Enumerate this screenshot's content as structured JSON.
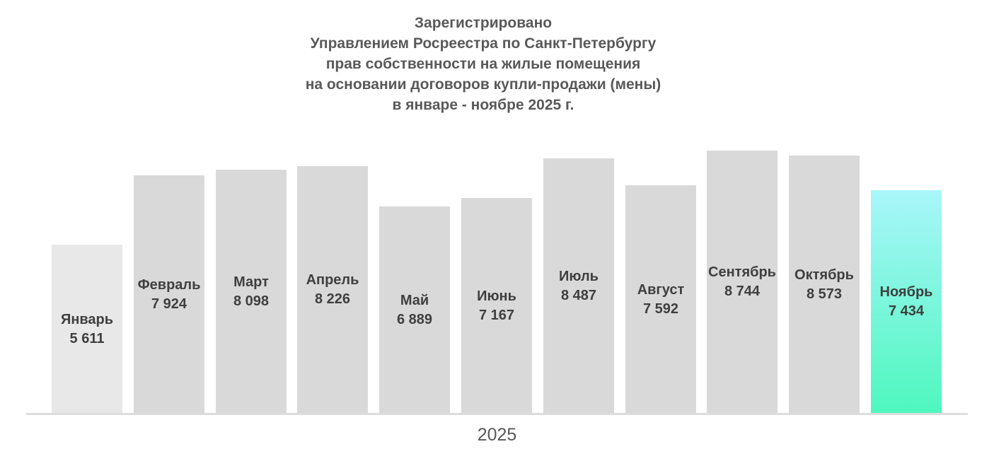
{
  "title": {
    "lines": [
      "Зарегистрировано",
      "Управлением Росреестра по Санкт-Петербургу",
      "прав собственности на жилые помещения",
      "на основании договоров купли-продажи (мены)",
      "в январе - ноябре 2025 г."
    ]
  },
  "x_axis": {
    "label": "2025"
  },
  "colors": {
    "background": "#ffffff",
    "title_text": "#595959",
    "bar_label_text": "#3f3f3f",
    "axis_label_text": "#595959",
    "axis_line": "#dcdcdc",
    "bar_default": "#d9d9d9",
    "bar_first": "#e8e8e8",
    "bar_highlight_gradient_top": "#a9f6fa",
    "bar_highlight_gradient_bottom": "#4ef7be"
  },
  "chart_data": {
    "type": "bar",
    "title": "Зарегистрировано Управлением Росреестра по Санкт-Петербургу прав собственности на жилые помещения на основании договоров купли-продажи (мены) в январе - ноябре 2025 г.",
    "categories": [
      "Январь",
      "Февраль",
      "Март",
      "Апрель",
      "Май",
      "Июнь",
      "Июль",
      "Август",
      "Сентябрь",
      "Октябрь",
      "Ноябрь"
    ],
    "values": [
      5611,
      7924,
      8098,
      8226,
      6889,
      7167,
      8487,
      7592,
      8744,
      8573,
      7434
    ],
    "value_labels": [
      "5 611",
      "7 924",
      "8 098",
      "8 226",
      "6 889",
      "7 167",
      "8 487",
      "7 592",
      "8 744",
      "8 573",
      "7 434"
    ],
    "xlabel": "2025",
    "ylabel": "",
    "ylim": [
      0,
      8744
    ],
    "grid": false,
    "legend": false,
    "label_position": "inside-center",
    "highlight_index": 10,
    "muted_index": 0
  }
}
